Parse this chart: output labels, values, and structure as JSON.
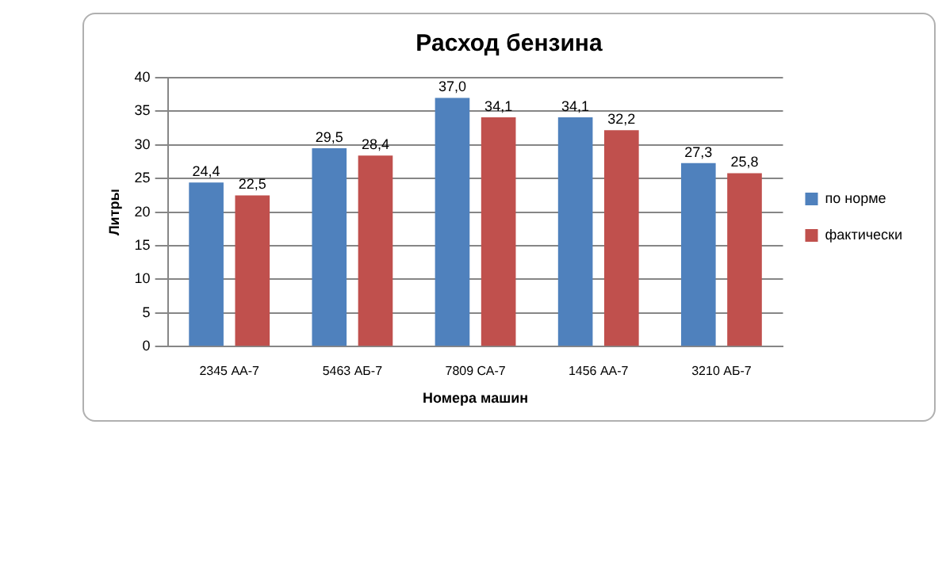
{
  "chart_data": {
    "type": "bar",
    "title": "Расход бензина",
    "xlabel": "Номера машин",
    "ylabel": "Литры",
    "categories": [
      "2345 АА-7",
      "5463 АБ-7",
      "7809 СА-7",
      "1456 АА-7",
      "3210 АБ-7"
    ],
    "series": [
      {
        "name": "по норме",
        "color": "#4f81bd",
        "values": [
          24.4,
          29.5,
          37.0,
          34.1,
          27.3
        ],
        "value_labels": [
          "24,4",
          "29,5",
          "37,0",
          "34,1",
          "27,3"
        ]
      },
      {
        "name": "фактически",
        "color": "#c0504d",
        "values": [
          22.5,
          28.4,
          34.1,
          32.2,
          25.8
        ],
        "value_labels": [
          "22,5",
          "28,4",
          "34,1",
          "32,2",
          "25,8"
        ]
      }
    ],
    "ylim": [
      0,
      40
    ],
    "yticks": [
      0,
      5,
      10,
      15,
      20,
      25,
      30,
      35,
      40
    ],
    "grid": "y",
    "legend": "right"
  }
}
